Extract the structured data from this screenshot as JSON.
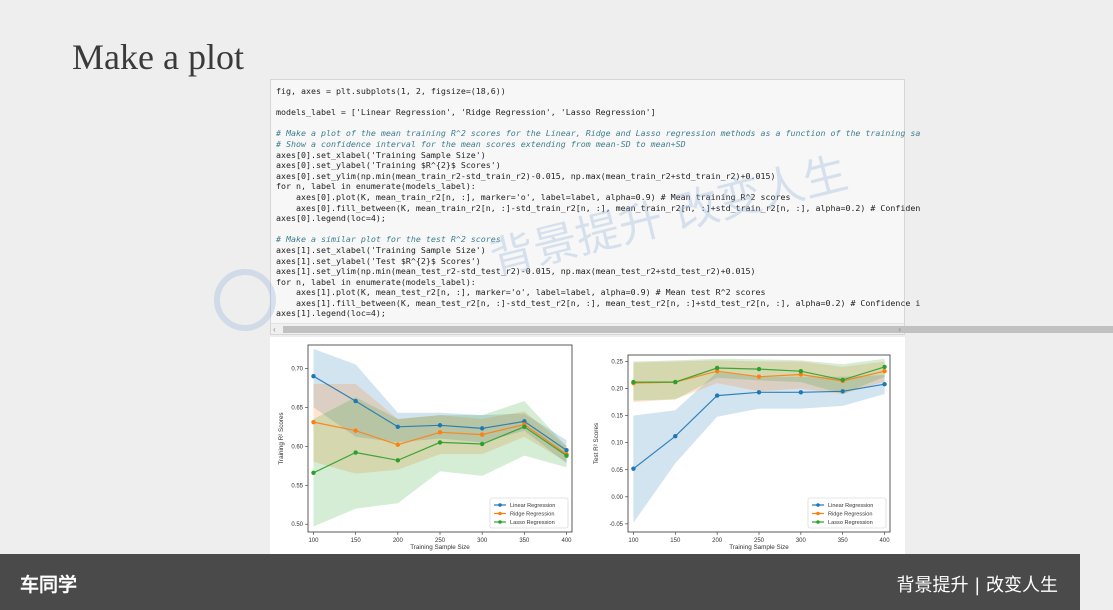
{
  "slide": {
    "title": "Make a plot"
  },
  "code": {
    "lines": [
      {
        "text": "fig, axes = plt.subplots(1, 2, figsize=(18,6))",
        "kind": "code"
      },
      {
        "text": "",
        "kind": "blank"
      },
      {
        "text": "models_label = ['Linear Regression', 'Ridge Regression', 'Lasso Regression']",
        "kind": "code"
      },
      {
        "text": "",
        "kind": "blank"
      },
      {
        "text": "# Make a plot of the mean training R^2 scores for the Linear, Ridge and Lasso regression methods as a function of the training sa",
        "kind": "comment"
      },
      {
        "text": "# Show a confidence interval for the mean scores extending from mean-SD to mean+SD",
        "kind": "comment"
      },
      {
        "text": "axes[0].set_xlabel('Training Sample Size')",
        "kind": "code"
      },
      {
        "text": "axes[0].set_ylabel('Training $R^{2}$ Scores')",
        "kind": "code"
      },
      {
        "text": "axes[0].set_ylim(np.min(mean_train_r2-std_train_r2)-0.015, np.max(mean_train_r2+std_train_r2)+0.015)",
        "kind": "code"
      },
      {
        "text": "for n, label in enumerate(models_label):",
        "kind": "code"
      },
      {
        "text": "    axes[0].plot(K, mean_train_r2[n, :], marker='o', label=label, alpha=0.9) # Mean training R^2 scores",
        "kind": "code"
      },
      {
        "text": "    axes[0].fill_between(K, mean_train_r2[n, :]-std_train_r2[n, :], mean_train_r2[n, :]+std_train_r2[n, :], alpha=0.2) # Confiden",
        "kind": "code"
      },
      {
        "text": "axes[0].legend(loc=4);",
        "kind": "code"
      },
      {
        "text": "",
        "kind": "blank"
      },
      {
        "text": "# Make a similar plot for the test R^2 scores",
        "kind": "comment"
      },
      {
        "text": "axes[1].set_xlabel('Training Sample Size')",
        "kind": "code"
      },
      {
        "text": "axes[1].set_ylabel('Test $R^{2}$ Scores')",
        "kind": "code"
      },
      {
        "text": "axes[1].set_ylim(np.min(mean_test_r2-std_test_r2)-0.015, np.max(mean_test_r2+std_test_r2)+0.015)",
        "kind": "code"
      },
      {
        "text": "for n, label in enumerate(models_label):",
        "kind": "code"
      },
      {
        "text": "    axes[1].plot(K, mean_test_r2[n, :], marker='o', label=label, alpha=0.9) # Mean test R^2 scores",
        "kind": "code"
      },
      {
        "text": "    axes[1].fill_between(K, mean_test_r2[n, :]-std_test_r2[n, :], mean_test_r2[n, :]+std_test_r2[n, :], alpha=0.2) # Confidence i",
        "kind": "code"
      },
      {
        "text": "axes[1].legend(loc=4);",
        "kind": "code"
      }
    ]
  },
  "scrollbar": {
    "left_arrow": "‹",
    "right_arrow": "›"
  },
  "watermark": {
    "text": "背景提升 改变人生",
    "color": "#9ab7dd"
  },
  "footer": {
    "brand": "车同学",
    "slogan": "背景提升 | 改变人生",
    "background": "#4a4a4a"
  },
  "colors": {
    "linear": "#1f77b4",
    "ridge": "#ff7f0e",
    "lasso": "#2ca02c"
  },
  "chart_data": [
    {
      "type": "line",
      "xlabel": "Training Sample Size",
      "ylabel": "Training R² Scores",
      "x": [
        100,
        150,
        200,
        250,
        300,
        350,
        400
      ],
      "xticks": [
        100,
        150,
        200,
        250,
        300,
        350,
        400
      ],
      "yticks": [
        0.5,
        0.55,
        0.6,
        0.65,
        0.7
      ],
      "ytick_labels": [
        "0.50",
        "0.55",
        "0.60",
        "0.65",
        "0.70"
      ],
      "ylim": [
        0.49,
        0.73
      ],
      "legend_position": "bottom-right",
      "grid": false,
      "series": [
        {
          "name": "Linear Regression",
          "color": "#1f77b4",
          "values": [
            0.69,
            0.658,
            0.625,
            0.627,
            0.623,
            0.632,
            0.595
          ],
          "upper": [
            0.725,
            0.705,
            0.643,
            0.643,
            0.64,
            0.642,
            0.608
          ],
          "lower": [
            0.65,
            0.612,
            0.605,
            0.61,
            0.605,
            0.62,
            0.578
          ]
        },
        {
          "name": "Ridge Regression",
          "color": "#ff7f0e",
          "values": [
            0.631,
            0.62,
            0.602,
            0.618,
            0.615,
            0.628,
            0.59
          ],
          "upper": [
            0.68,
            0.68,
            0.635,
            0.64,
            0.635,
            0.645,
            0.6
          ],
          "lower": [
            0.58,
            0.565,
            0.57,
            0.59,
            0.59,
            0.612,
            0.58
          ]
        },
        {
          "name": "Lasso Regression",
          "color": "#2ca02c",
          "values": [
            0.566,
            0.592,
            0.582,
            0.605,
            0.603,
            0.625,
            0.588
          ],
          "upper": [
            0.635,
            0.663,
            0.635,
            0.64,
            0.64,
            0.658,
            0.6
          ],
          "lower": [
            0.497,
            0.52,
            0.527,
            0.568,
            0.562,
            0.588,
            0.573
          ]
        }
      ]
    },
    {
      "type": "line",
      "xlabel": "Training Sample Size",
      "ylabel": "Test R² Scores",
      "x": [
        100,
        150,
        200,
        250,
        300,
        350,
        400
      ],
      "xticks": [
        100,
        150,
        200,
        250,
        300,
        350,
        400
      ],
      "yticks": [
        -0.05,
        0.0,
        0.05,
        0.1,
        0.15,
        0.2,
        0.25
      ],
      "ytick_labels": [
        "-0.05",
        "0.00",
        "0.05",
        "0.10",
        "0.15",
        "0.20",
        "0.25"
      ],
      "ylim": [
        -0.065,
        0.262
      ],
      "legend_position": "bottom-right",
      "grid": false,
      "series": [
        {
          "name": "Linear Regression",
          "color": "#1f77b4",
          "values": [
            0.052,
            0.112,
            0.187,
            0.193,
            0.193,
            0.195,
            0.208
          ],
          "upper": [
            0.15,
            0.16,
            0.23,
            0.222,
            0.222,
            0.222,
            0.225
          ],
          "lower": [
            -0.048,
            0.062,
            0.148,
            0.163,
            0.163,
            0.168,
            0.19
          ]
        },
        {
          "name": "Ridge Regression",
          "color": "#ff7f0e",
          "values": [
            0.21,
            0.212,
            0.232,
            0.222,
            0.226,
            0.214,
            0.232
          ],
          "upper": [
            0.248,
            0.25,
            0.252,
            0.25,
            0.25,
            0.24,
            0.25
          ],
          "lower": [
            0.175,
            0.18,
            0.21,
            0.195,
            0.2,
            0.19,
            0.213
          ]
        },
        {
          "name": "Lasso Regression",
          "color": "#2ca02c",
          "values": [
            0.212,
            0.212,
            0.238,
            0.236,
            0.232,
            0.216,
            0.24
          ],
          "upper": [
            0.25,
            0.252,
            0.255,
            0.254,
            0.252,
            0.245,
            0.255
          ],
          "lower": [
            0.178,
            0.18,
            0.22,
            0.215,
            0.212,
            0.19,
            0.222
          ]
        }
      ]
    }
  ]
}
